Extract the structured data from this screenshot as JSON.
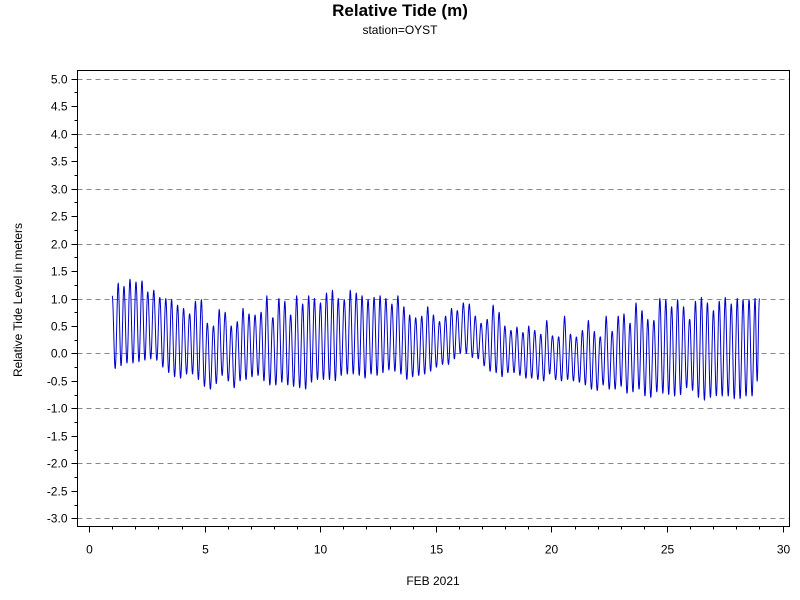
{
  "chart_data": {
    "type": "line",
    "title": "Relative Tide (m)",
    "subtitle": "station=OYST",
    "xlabel": "FEB 2021",
    "ylabel": "Relative Tide Level in meters",
    "xlim": [
      -0.5,
      30.3
    ],
    "ylim": [
      -3.15,
      5.15
    ],
    "x_ticks": [
      0,
      5,
      10,
      15,
      20,
      25,
      30
    ],
    "x_tick_labels": [
      "0",
      "5",
      "10",
      "15",
      "20",
      "25",
      "30"
    ],
    "y_ticks": [
      5.0,
      4.5,
      4.0,
      3.5,
      3.0,
      2.5,
      2.0,
      1.5,
      1.0,
      0.5,
      0.0,
      -0.5,
      -1.0,
      -1.5,
      -2.0,
      -2.5,
      -3.0
    ],
    "y_tick_labels": [
      "5.0",
      "4.5",
      "4.0",
      "3.5",
      "3.0",
      "2.5",
      "2.0",
      "1.5",
      "1.0",
      "0.5",
      "0.0",
      "-0.5",
      "-1.0",
      "-1.5",
      "-2.0",
      "-2.5",
      "-3.0"
    ],
    "x_minor_ticks": [
      1,
      2,
      3,
      4,
      6,
      7,
      8,
      9,
      11,
      12,
      13,
      14,
      16,
      17,
      18,
      19,
      21,
      22,
      23,
      24,
      26,
      27,
      28,
      29
    ],
    "y_minor_ticks": [
      4.75,
      4.25,
      3.75,
      3.25,
      2.75,
      2.25,
      1.75,
      1.25,
      0.75,
      0.25,
      -0.25,
      -0.75,
      -1.25,
      -1.75,
      -2.25,
      -2.75
    ],
    "grid": {
      "horizontal": true,
      "style": "dashed",
      "color": "#888888",
      "lines_at": [
        5.0,
        4.0,
        3.0,
        2.0,
        1.0,
        0.0,
        -1.0,
        -2.0,
        -3.0
      ]
    },
    "series": [
      {
        "color": "#0000cc",
        "x": [
          1.0,
          1.26,
          1.51,
          1.77,
          2.03,
          2.29,
          2.54,
          2.8,
          3.06,
          3.32,
          3.57,
          3.83,
          4.09,
          4.35,
          4.6,
          4.86,
          5.12,
          5.38,
          5.63,
          5.89,
          6.15,
          6.41,
          6.66,
          6.92,
          7.18,
          7.44,
          7.69,
          7.95,
          8.21,
          8.47,
          8.72,
          8.98,
          9.24,
          9.5,
          9.75,
          10.01,
          10.27,
          10.53,
          10.78,
          11.04,
          11.3,
          11.56,
          11.81,
          12.07,
          12.33,
          12.59,
          12.84,
          13.1,
          13.36,
          13.62,
          13.87,
          14.13,
          14.39,
          14.65,
          14.9,
          15.16,
          15.42,
          15.68,
          15.93,
          16.19,
          16.45,
          16.71,
          16.96,
          17.22,
          17.48,
          17.74,
          17.99,
          18.25,
          18.51,
          18.77,
          19.02,
          19.28,
          19.54,
          19.8,
          20.05,
          20.31,
          20.57,
          20.83,
          21.08,
          21.34,
          21.6,
          21.86,
          22.11,
          22.37,
          22.63,
          22.89,
          23.14,
          23.4,
          23.66,
          23.92,
          24.17,
          24.43,
          24.69,
          24.95,
          25.2,
          25.46,
          25.72,
          25.98,
          26.23,
          26.49,
          26.75,
          27.01,
          27.26,
          27.52,
          27.78,
          28.04,
          28.29,
          28.55,
          28.81,
          29.0
        ],
        "high": [
          1.05,
          1.28,
          1.22,
          1.35,
          1.3,
          1.32,
          1.12,
          1.15,
          1.02,
          1.0,
          0.98,
          0.88,
          0.82,
          0.72,
          0.95,
          0.98,
          0.55,
          0.5,
          0.8,
          0.75,
          0.5,
          0.58,
          0.82,
          0.72,
          0.7,
          0.75,
          1.05,
          0.65,
          1.0,
          0.95,
          0.7,
          1.05,
          0.9,
          1.05,
          1.0,
          0.92,
          1.1,
          1.15,
          1.0,
          0.98,
          1.15,
          1.1,
          1.05,
          0.98,
          1.02,
          1.05,
          1.0,
          0.9,
          1.05,
          0.85,
          0.7,
          0.65,
          0.68,
          0.85,
          0.7,
          0.58,
          0.68,
          0.82,
          0.78,
          0.92,
          0.9,
          0.68,
          0.55,
          0.62,
          0.88,
          0.75,
          0.5,
          0.42,
          0.48,
          0.38,
          0.5,
          0.42,
          0.35,
          0.6,
          0.32,
          0.3,
          0.68,
          0.35,
          0.3,
          0.42,
          0.6,
          0.4,
          0.3,
          0.68,
          0.4,
          0.68,
          0.72,
          0.55,
          0.92,
          0.78,
          0.62,
          0.6,
          1.0,
          0.98,
          0.85,
          0.98,
          0.85,
          0.62,
          0.95,
          1.02,
          0.92,
          0.78,
          0.95,
          1.02,
          0.9,
          1.0,
          0.98,
          0.98,
          1.0,
          1.0
        ],
        "low": [
          -0.3,
          -0.25,
          -0.2,
          -0.15,
          -0.2,
          -0.1,
          -0.15,
          -0.05,
          -0.2,
          -0.3,
          -0.4,
          -0.45,
          -0.45,
          -0.3,
          -0.45,
          -0.5,
          -0.7,
          -0.6,
          -0.5,
          -0.3,
          -0.7,
          -0.55,
          -0.45,
          -0.5,
          -0.35,
          -0.45,
          -0.55,
          -0.6,
          -0.55,
          -0.5,
          -0.65,
          -0.55,
          -0.7,
          -0.6,
          -0.45,
          -0.5,
          -0.45,
          -0.5,
          -0.5,
          -0.3,
          -0.45,
          -0.3,
          -0.5,
          -0.4,
          -0.35,
          -0.45,
          -0.25,
          -0.35,
          -0.3,
          -0.45,
          -0.5,
          -0.35,
          -0.45,
          -0.3,
          -0.35,
          -0.15,
          -0.25,
          -0.15,
          -0.05,
          0.05,
          -0.05,
          -0.1,
          -0.1,
          -0.35,
          -0.3,
          -0.4,
          -0.45,
          -0.25,
          -0.45,
          -0.35,
          -0.55,
          -0.35,
          -0.6,
          -0.4,
          -0.35,
          -0.6,
          -0.4,
          -0.55,
          -0.45,
          -0.6,
          -0.55,
          -0.75,
          -0.6,
          -0.55,
          -0.75,
          -0.55,
          -0.65,
          -0.8,
          -0.6,
          -0.7,
          -0.85,
          -0.75,
          -0.65,
          -0.8,
          -0.7,
          -0.85,
          -0.65,
          -0.6,
          -0.75,
          -0.85,
          -0.85,
          -0.75,
          -0.8,
          -0.75,
          -0.8,
          -0.85,
          -0.8,
          -0.75,
          -0.8,
          -0.2
        ]
      }
    ]
  }
}
